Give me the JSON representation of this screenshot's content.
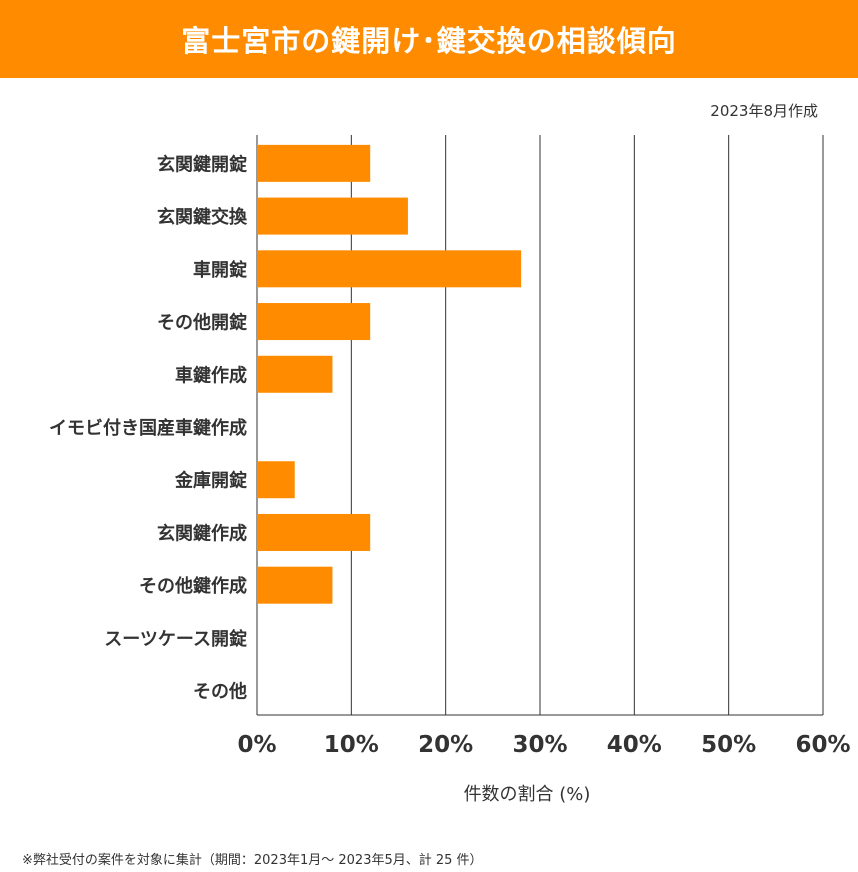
{
  "title": "富士宮市の鍵開け･鍵交換の相談傾向",
  "date_note": "2023年8月作成",
  "footnote": "※弊社受付の案件を対象に集計（期間：2023年1月～ 2023年5月、計 25 件）",
  "colors": {
    "banner": "#ff8c00",
    "bar": "#ff8c00",
    "grid": "#333333"
  },
  "chart_data": {
    "type": "bar",
    "orientation": "horizontal",
    "categories": [
      "玄関鍵開錠",
      "玄関鍵交換",
      "車開錠",
      "その他開錠",
      "車鍵作成",
      "イモビ付き国産車鍵作成",
      "金庫開錠",
      "玄関鍵作成",
      "その他鍵作成",
      "スーツケース開錠",
      "その他"
    ],
    "values": [
      12,
      16,
      28,
      12,
      8,
      0,
      4,
      12,
      8,
      0,
      0
    ],
    "xlim": [
      0,
      60
    ],
    "xticks": [
      "0%",
      "10%",
      "20%",
      "30%",
      "40%",
      "50%",
      "60%"
    ],
    "xlabel": "件数の割合 (%)",
    "grid": true
  }
}
